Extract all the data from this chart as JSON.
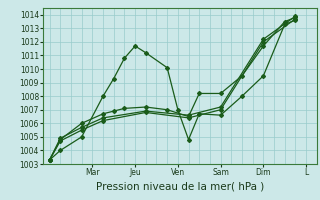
{
  "background_color": "#cce8e8",
  "plot_bg_color": "#cce8e8",
  "grid_color": "#99cccc",
  "line_color": "#1a5c1a",
  "spine_color": "#3a7a3a",
  "ylim": [
    1003,
    1014.5
  ],
  "yticks": [
    1003,
    1004,
    1005,
    1006,
    1007,
    1008,
    1009,
    1010,
    1011,
    1012,
    1013,
    1014
  ],
  "xlabel": "Pression niveau de la mer( hPa )",
  "xlabel_fontsize": 7.5,
  "x_day_positions": [
    2,
    4,
    6,
    8,
    10,
    12
  ],
  "x_day_labels": [
    "Mar",
    "Jeu",
    "Ven",
    "Sam",
    "Dim",
    "L"
  ],
  "xlim": [
    -0.3,
    12.5
  ],
  "line1": {
    "x": [
      0,
      0.5,
      1.5,
      2.5,
      3.0,
      3.5,
      4.0,
      4.5,
      5.5,
      6.0,
      6.5,
      7.0,
      8.0,
      9.0,
      10.0,
      11.0,
      11.5
    ],
    "y": [
      1003.3,
      1004.0,
      1005.0,
      1008.0,
      1009.3,
      1010.8,
      1011.7,
      1011.2,
      1010.1,
      1007.0,
      1004.8,
      1006.7,
      1006.6,
      1008.0,
      1009.5,
      1013.3,
      1013.6
    ]
  },
  "line2": {
    "x": [
      0,
      0.5,
      1.5,
      2.5,
      3.0,
      3.5,
      4.5,
      5.5,
      6.5,
      7.0,
      8.0,
      9.0,
      10.0,
      11.0,
      11.5
    ],
    "y": [
      1003.3,
      1004.8,
      1006.0,
      1006.7,
      1006.9,
      1007.1,
      1007.2,
      1007.0,
      1006.5,
      1008.2,
      1008.2,
      1009.5,
      1011.7,
      1013.5,
      1013.8
    ]
  },
  "line3": {
    "x": [
      0,
      0.5,
      1.5,
      2.5,
      4.5,
      6.5,
      8.0,
      10.0,
      11.5
    ],
    "y": [
      1003.3,
      1004.7,
      1005.5,
      1006.2,
      1006.8,
      1006.4,
      1007.0,
      1012.0,
      1013.7
    ]
  },
  "line4": {
    "x": [
      0,
      0.5,
      1.5,
      2.5,
      4.5,
      6.5,
      8.0,
      10.0,
      11.5
    ],
    "y": [
      1003.3,
      1004.9,
      1005.7,
      1006.4,
      1006.9,
      1006.6,
      1007.2,
      1012.2,
      1013.9
    ]
  },
  "tick_fontsize": 5.5,
  "marker_size": 2.0,
  "line_width": 0.9
}
